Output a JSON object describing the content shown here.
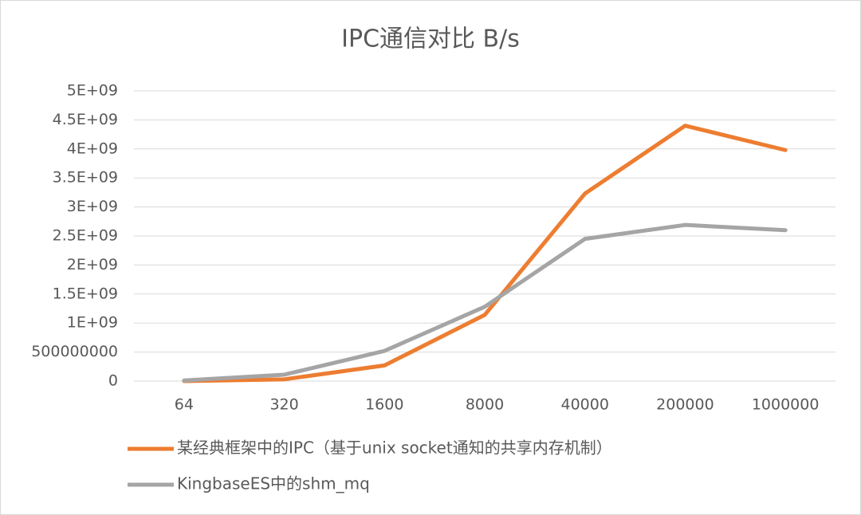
{
  "chart_data": {
    "type": "line",
    "title": "IPC通信对比 B/s",
    "categories": [
      "64",
      "320",
      "1600",
      "8000",
      "40000",
      "200000",
      "1000000"
    ],
    "series": [
      {
        "name": "某经典框架中的IPC（基于unix socket通知的共享内存机制）",
        "color": "#ed7d31",
        "values": [
          0,
          30000000,
          270000000,
          1140000000,
          3230000000,
          4400000000,
          3980000000
        ]
      },
      {
        "name": "KingbaseES中的shm_mq",
        "color": "#a5a5a5",
        "values": [
          10000000,
          110000000,
          520000000,
          1280000000,
          2450000000,
          2690000000,
          2600000000
        ]
      }
    ],
    "ylim": [
      0,
      5000000000
    ],
    "yticks": [
      0,
      500000000,
      {
        "value": 1000000000,
        "label": "1E+09"
      },
      {
        "value": 1500000000,
        "label": "1.5E+09"
      },
      {
        "value": 2000000000,
        "label": "2E+09"
      },
      {
        "value": 2500000000,
        "label": "2.5E+09"
      },
      {
        "value": 3000000000,
        "label": "3E+09"
      },
      {
        "value": 3500000000,
        "label": "3.5E+09"
      },
      {
        "value": 4000000000,
        "label": "4E+09"
      },
      {
        "value": 4500000000,
        "label": "4.5E+09"
      },
      {
        "value": 5000000000,
        "label": "5E+09"
      }
    ],
    "grid": true,
    "legend": "bottom"
  }
}
